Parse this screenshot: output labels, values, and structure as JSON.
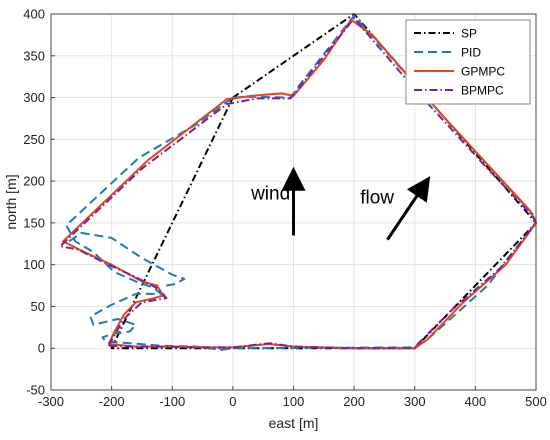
{
  "chart_data": {
    "type": "line",
    "xlabel": "east  [m]",
    "ylabel": "north [m]",
    "xlim": [
      -300,
      500
    ],
    "ylim": [
      -50,
      400
    ],
    "xticks": [
      -300,
      -200,
      -100,
      0,
      100,
      200,
      300,
      400,
      500
    ],
    "yticks": [
      -50,
      0,
      50,
      100,
      150,
      200,
      250,
      300,
      350,
      400
    ],
    "grid": true,
    "legend_position": "top-right",
    "series": [
      {
        "name": "SP",
        "color": "#000000",
        "dash": "7,3,1.5,3",
        "points": [
          [
            0,
            300
          ],
          [
            200,
            400
          ],
          [
            500,
            150
          ],
          [
            300,
            0
          ],
          [
            -200,
            0
          ],
          [
            0,
            300
          ]
        ]
      },
      {
        "name": "PID",
        "color": "#1f77c4",
        "dash": "9,5",
        "points": [
          [
            0,
            300
          ],
          [
            25,
            301
          ],
          [
            95,
            300
          ],
          [
            110,
            315
          ],
          [
            200,
            398
          ],
          [
            350,
            275
          ],
          [
            495,
            160
          ],
          [
            500,
            150
          ],
          [
            420,
            75
          ],
          [
            320,
            10
          ],
          [
            298,
            1
          ],
          [
            0,
            0
          ],
          [
            -20,
            -2
          ],
          [
            -60,
            2
          ],
          [
            -120,
            3
          ],
          [
            -170,
            6
          ],
          [
            -210,
            8
          ],
          [
            -215,
            13
          ],
          [
            -200,
            17
          ],
          [
            -170,
            20
          ],
          [
            -160,
            28
          ],
          [
            -190,
            35
          ],
          [
            -230,
            28
          ],
          [
            -235,
            38
          ],
          [
            -200,
            52
          ],
          [
            -160,
            65
          ],
          [
            -115,
            65
          ],
          [
            -110,
            60
          ],
          [
            -130,
            72
          ],
          [
            -160,
            80
          ],
          [
            -195,
            91
          ],
          [
            -230,
            115
          ],
          [
            -260,
            128
          ],
          [
            -275,
            147
          ],
          [
            -155,
            228
          ],
          [
            -60,
            268
          ],
          [
            0,
            300
          ]
        ],
        "loop_points": [
          [
            -270,
            128
          ],
          [
            -250,
            138
          ],
          [
            -200,
            132
          ],
          [
            -150,
            108
          ],
          [
            -100,
            88
          ],
          [
            -80,
            83
          ],
          [
            -95,
            77
          ],
          [
            -110,
            75
          ]
        ]
      },
      {
        "name": "GPMPC",
        "color": "#e0481c",
        "dash": "",
        "points": [
          [
            -205,
            5
          ],
          [
            -195,
            20
          ],
          [
            -180,
            40
          ],
          [
            -160,
            55
          ],
          [
            -130,
            60
          ],
          [
            -115,
            63
          ],
          [
            -125,
            75
          ],
          [
            -150,
            80
          ],
          [
            -200,
            100
          ],
          [
            -245,
            115
          ],
          [
            -280,
            128
          ],
          [
            -140,
            225
          ],
          [
            -10,
            298
          ],
          [
            30,
            302
          ],
          [
            80,
            305
          ],
          [
            100,
            302
          ],
          [
            150,
            345
          ],
          [
            195,
            393
          ],
          [
            230,
            375
          ],
          [
            350,
            275
          ],
          [
            490,
            165
          ],
          [
            500,
            150
          ],
          [
            450,
            100
          ],
          [
            380,
            55
          ],
          [
            320,
            10
          ],
          [
            300,
            0
          ],
          [
            200,
            0
          ],
          [
            100,
            2
          ],
          [
            60,
            5
          ],
          [
            0,
            1
          ],
          [
            -40,
            1
          ],
          [
            -100,
            2
          ],
          [
            -160,
            2
          ],
          [
            -205,
            5
          ]
        ]
      },
      {
        "name": "BPMPC",
        "color": "#7b1fa2",
        "dash": "8,3,1.5,3",
        "points": [
          [
            -205,
            3
          ],
          [
            -180,
            35
          ],
          [
            -150,
            55
          ],
          [
            -125,
            58
          ],
          [
            -110,
            60
          ],
          [
            -125,
            72
          ],
          [
            -160,
            85
          ],
          [
            -205,
            100
          ],
          [
            -255,
            118
          ],
          [
            -285,
            122
          ],
          [
            -150,
            215
          ],
          [
            -10,
            292
          ],
          [
            40,
            299
          ],
          [
            95,
            299
          ],
          [
            140,
            340
          ],
          [
            200,
            395
          ],
          [
            300,
            310
          ],
          [
            420,
            215
          ],
          [
            495,
            158
          ],
          [
            500,
            150
          ],
          [
            440,
            95
          ],
          [
            360,
            45
          ],
          [
            305,
            5
          ],
          [
            300,
            0
          ],
          [
            200,
            0
          ],
          [
            100,
            2
          ],
          [
            60,
            6
          ],
          [
            0,
            1
          ],
          [
            -60,
            1
          ],
          [
            -120,
            2
          ],
          [
            -170,
            2
          ],
          [
            -205,
            3
          ]
        ]
      }
    ],
    "annotations": [
      {
        "text": "wind",
        "x": 30,
        "y": 178
      },
      {
        "text": "flow",
        "x": 210,
        "y": 173
      }
    ],
    "arrows": [
      {
        "from": [
          100,
          135
        ],
        "to": [
          100,
          210
        ]
      },
      {
        "from": [
          255,
          130
        ],
        "to": [
          320,
          200
        ]
      }
    ]
  }
}
